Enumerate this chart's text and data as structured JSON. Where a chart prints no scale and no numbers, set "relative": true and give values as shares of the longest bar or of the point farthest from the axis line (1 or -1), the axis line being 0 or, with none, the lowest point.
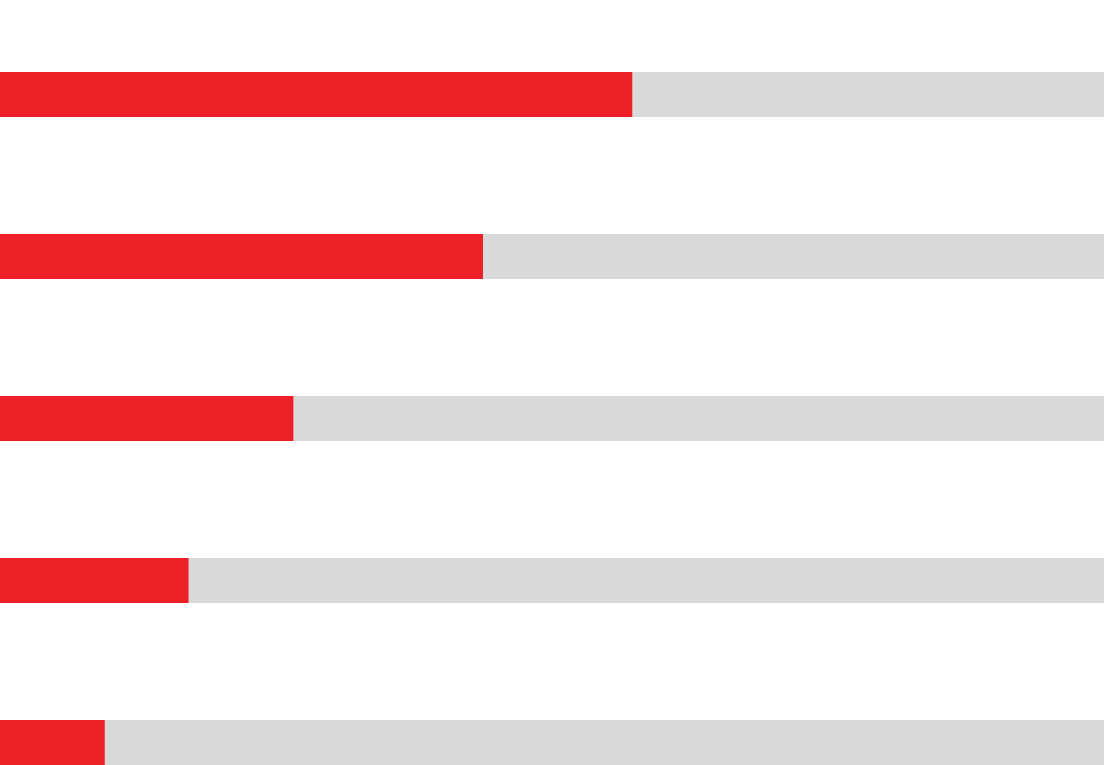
{
  "chart_data": {
    "type": "bar",
    "orientation": "horizontal",
    "stacked": true,
    "relative": true,
    "categories": [
      null,
      null,
      null,
      null,
      null
    ],
    "series": [
      {
        "color": "#ed1f27",
        "values": [
          0.573,
          0.4375,
          0.266,
          0.171,
          0.095
        ]
      },
      {
        "color": "#d9d9d9",
        "values": [
          0.427,
          0.5625,
          0.734,
          0.829,
          0.905
        ]
      }
    ],
    "grid": false
  }
}
